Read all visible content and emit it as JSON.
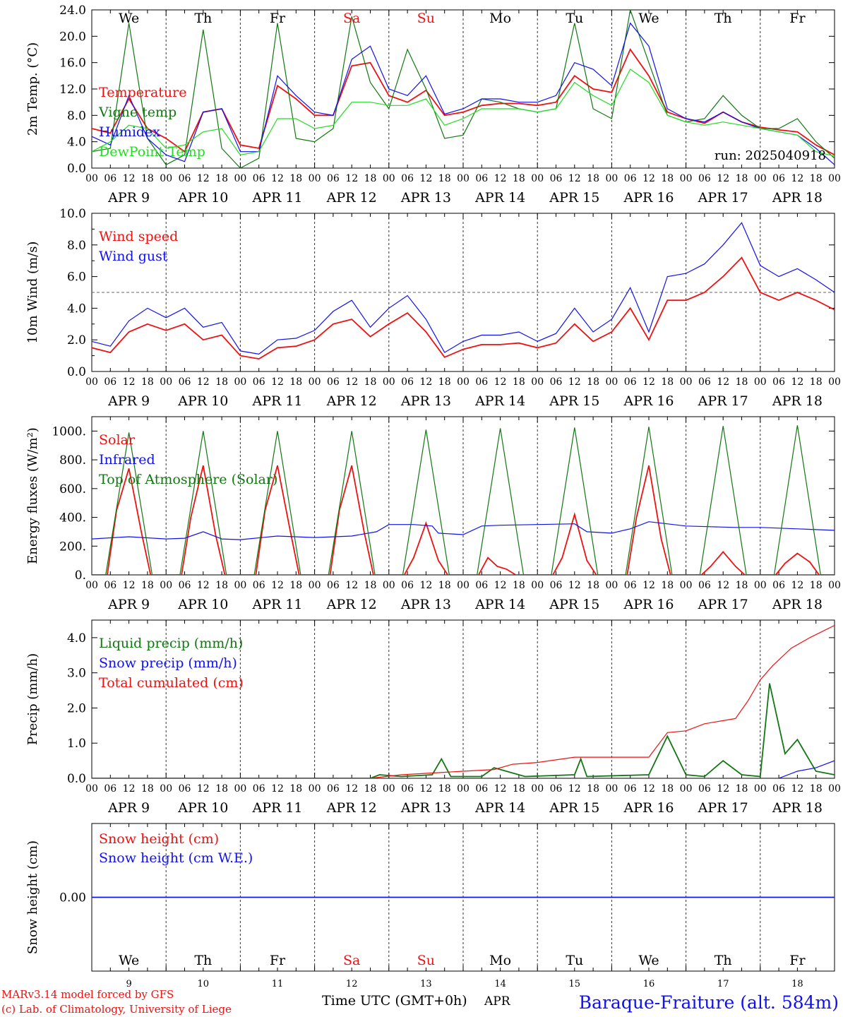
{
  "colors": {
    "red": "#ee1111",
    "blue": "#1111ee",
    "green": "#117711",
    "lightgreen": "#22dd22",
    "grey": "#555555"
  },
  "days": {
    "date_labels": [
      "APR  9",
      "APR 10",
      "APR 11",
      "APR 12",
      "APR 13",
      "APR 14",
      "APR 15",
      "APR 16",
      "APR 17",
      "APR 18"
    ],
    "weekday_labels": [
      "We",
      "Th",
      "Fr",
      "Sa",
      "Su",
      "Mo",
      "Tu",
      "We",
      "Th",
      "Fr"
    ],
    "weekend_flags": [
      false,
      false,
      false,
      true,
      true,
      false,
      false,
      false,
      false,
      false
    ],
    "day_numbers": [
      "9",
      "10",
      "11",
      "12",
      "13",
      "14",
      "15",
      "16",
      "17",
      "18"
    ],
    "hour_ticks": [
      "00",
      "06",
      "12",
      "18"
    ],
    "final_tick": "00"
  },
  "footer": {
    "model_line": "MARv3.14 model forced by GFS",
    "copyright_line": "(c) Lab. of Climatology, University of Liege",
    "time_axis_label": "Time UTC (GMT+0h)",
    "month_label": "APR",
    "station_title": "Baraque-Fraiture (alt. 584m)"
  },
  "chart_data": [
    {
      "type": "line",
      "ylabel": "2m Temp. (°C)",
      "yticks": [
        "0.0",
        "4.0",
        "8.0",
        "12.0",
        "16.0",
        "20.0",
        "24.0"
      ],
      "ylim": [
        0,
        24
      ],
      "xlim_hours": [
        0,
        240
      ],
      "annotation": "run: 2025040918",
      "series": [
        {
          "name": "Temperature",
          "color": "red",
          "x": [
            0,
            6,
            12,
            18,
            24,
            30,
            36,
            42,
            48,
            54,
            60,
            66,
            72,
            78,
            84,
            90,
            96,
            102,
            108,
            114,
            120,
            126,
            132,
            138,
            144,
            150,
            156,
            162,
            168,
            174,
            180,
            186,
            192,
            198,
            204,
            210,
            216,
            222,
            228,
            234,
            240
          ],
          "values": [
            6.0,
            5.3,
            10.5,
            6.0,
            4.5,
            2.5,
            8.5,
            9.0,
            3.5,
            3.0,
            12.5,
            10.5,
            8.0,
            8.0,
            15.5,
            16.0,
            11.0,
            10.0,
            11.8,
            8.0,
            8.5,
            9.5,
            9.8,
            9.8,
            9.5,
            10.0,
            14.0,
            12.0,
            11.5,
            18.0,
            14.0,
            8.5,
            7.5,
            6.8,
            8.5,
            7.0,
            6.2,
            5.8,
            5.5,
            3.5,
            2.0
          ]
        },
        {
          "name": "Vigne temp",
          "color": "green",
          "x": [
            0,
            6,
            12,
            18,
            24,
            30,
            36,
            42,
            48,
            54,
            60,
            66,
            72,
            78,
            84,
            90,
            96,
            102,
            108,
            114,
            120,
            126,
            132,
            138,
            144,
            150,
            156,
            162,
            168,
            174,
            180,
            186,
            192,
            198,
            204,
            210,
            216,
            222,
            228,
            234,
            240
          ],
          "values": [
            2.5,
            3.0,
            22.0,
            4.5,
            0.5,
            2.0,
            21.0,
            3.0,
            0.0,
            1.5,
            22.0,
            4.5,
            4.0,
            6.0,
            23.0,
            13.0,
            9.0,
            18.0,
            12.0,
            4.5,
            5.0,
            10.5,
            10.0,
            9.0,
            8.5,
            9.0,
            22.0,
            9.0,
            7.5,
            24.0,
            16.0,
            8.0,
            7.0,
            7.5,
            11.0,
            8.0,
            6.0,
            6.0,
            7.5,
            4.0,
            1.5
          ]
        },
        {
          "name": "Humidex",
          "color": "blue",
          "x": [
            0,
            6,
            12,
            18,
            24,
            30,
            36,
            42,
            48,
            54,
            60,
            66,
            72,
            78,
            84,
            90,
            96,
            102,
            108,
            114,
            120,
            126,
            132,
            138,
            144,
            150,
            156,
            162,
            168,
            174,
            180,
            186,
            192,
            198,
            204,
            210,
            216,
            222,
            228,
            234,
            240
          ],
          "values": [
            4.8,
            3.5,
            11.0,
            4.5,
            2.0,
            1.0,
            8.5,
            9.0,
            2.5,
            2.5,
            14.0,
            11.0,
            8.5,
            8.0,
            16.5,
            18.5,
            12.0,
            11.0,
            14.0,
            8.2,
            9.0,
            10.5,
            10.5,
            10.0,
            10.0,
            11.0,
            16.0,
            15.0,
            12.5,
            22.0,
            18.5,
            9.0,
            7.5,
            7.0,
            8.5,
            7.0,
            6.0,
            5.5,
            5.0,
            3.0,
            0.5
          ]
        },
        {
          "name": "DewPoint Temp",
          "color": "lightgreen",
          "x": [
            0,
            6,
            12,
            18,
            24,
            30,
            36,
            42,
            48,
            54,
            60,
            66,
            72,
            78,
            84,
            90,
            96,
            102,
            108,
            114,
            120,
            126,
            132,
            138,
            144,
            150,
            156,
            162,
            168,
            174,
            180,
            186,
            192,
            198,
            204,
            210,
            216,
            222,
            228,
            234,
            240
          ],
          "values": [
            2.5,
            4.0,
            6.5,
            6.0,
            3.0,
            3.5,
            5.5,
            6.0,
            2.0,
            2.5,
            7.5,
            7.5,
            6.0,
            6.5,
            10.0,
            10.0,
            9.5,
            9.5,
            10.5,
            6.5,
            7.5,
            9.0,
            9.0,
            9.0,
            8.5,
            9.0,
            13.0,
            11.0,
            9.5,
            15.0,
            13.0,
            8.0,
            7.0,
            6.5,
            7.0,
            6.5,
            6.0,
            5.5,
            5.0,
            2.5,
            1.8
          ]
        }
      ]
    },
    {
      "type": "line",
      "ylabel": "10m Wind (m/s)",
      "yticks": [
        "0.0",
        "2.0",
        "4.0",
        "6.0",
        "8.0",
        "10.0"
      ],
      "ylim": [
        0,
        10
      ],
      "xlim_hours": [
        0,
        240
      ],
      "reference_line": 5.0,
      "series": [
        {
          "name": "Wind speed",
          "color": "red",
          "x": [
            0,
            6,
            12,
            18,
            24,
            30,
            36,
            42,
            48,
            54,
            60,
            66,
            72,
            78,
            84,
            90,
            96,
            102,
            108,
            114,
            120,
            126,
            132,
            138,
            144,
            150,
            156,
            162,
            168,
            174,
            180,
            186,
            192,
            198,
            204,
            210,
            216,
            222,
            228,
            234,
            240
          ],
          "values": [
            1.5,
            1.2,
            2.5,
            3.0,
            2.6,
            3.0,
            2.0,
            2.3,
            1.0,
            0.8,
            1.5,
            1.6,
            2.0,
            3.0,
            3.3,
            2.2,
            3.0,
            3.7,
            2.5,
            0.9,
            1.4,
            1.7,
            1.7,
            1.8,
            1.5,
            1.8,
            3.0,
            1.9,
            2.5,
            4.0,
            2.0,
            4.5,
            4.5,
            5.0,
            6.0,
            7.2,
            5.0,
            4.5,
            5.0,
            4.5,
            3.9
          ]
        },
        {
          "name": "Wind gust",
          "color": "blue",
          "x": [
            0,
            6,
            12,
            18,
            24,
            30,
            36,
            42,
            48,
            54,
            60,
            66,
            72,
            78,
            84,
            90,
            96,
            102,
            108,
            114,
            120,
            126,
            132,
            138,
            144,
            150,
            156,
            162,
            168,
            174,
            180,
            186,
            192,
            198,
            204,
            210,
            216,
            222,
            228,
            234,
            240
          ],
          "values": [
            1.9,
            1.6,
            3.2,
            4.0,
            3.4,
            4.0,
            2.8,
            3.1,
            1.3,
            1.1,
            2.0,
            2.1,
            2.6,
            3.8,
            4.5,
            2.8,
            4.0,
            4.8,
            3.3,
            1.2,
            1.9,
            2.3,
            2.3,
            2.5,
            1.9,
            2.4,
            4.0,
            2.5,
            3.3,
            5.3,
            2.5,
            6.0,
            6.2,
            6.8,
            8.0,
            9.4,
            6.7,
            6.0,
            6.5,
            5.8,
            5.0
          ]
        }
      ]
    },
    {
      "type": "line",
      "ylabel": "Energy fluxes (W/m²)",
      "yticks": [
        "0.",
        "200.",
        "400.",
        "600.",
        "800.",
        "1000."
      ],
      "ylim": [
        0,
        1100
      ],
      "xlim_hours": [
        0,
        240
      ],
      "series": [
        {
          "name": "Solar",
          "color": "red",
          "x": [
            0,
            5,
            8,
            12,
            16,
            19,
            24,
            29,
            32,
            36,
            40,
            43,
            48,
            53,
            56,
            60,
            64,
            67,
            72,
            77,
            80,
            84,
            88,
            91,
            96,
            101,
            104,
            108,
            112,
            115,
            120,
            125,
            128,
            131,
            134,
            137,
            144,
            149,
            152,
            156,
            160,
            163,
            168,
            173,
            176,
            180,
            184,
            187,
            192,
            197,
            200,
            204,
            208,
            211,
            216,
            221,
            224,
            228,
            232,
            235,
            240
          ],
          "values": [
            0,
            0,
            450,
            740,
            300,
            0,
            0,
            0,
            400,
            760,
            280,
            0,
            0,
            0,
            450,
            760,
            320,
            0,
            0,
            0,
            450,
            760,
            300,
            0,
            0,
            0,
            120,
            360,
            100,
            0,
            0,
            0,
            120,
            60,
            40,
            0,
            0,
            0,
            120,
            420,
            100,
            0,
            0,
            0,
            400,
            760,
            250,
            0,
            0,
            0,
            60,
            160,
            60,
            0,
            0,
            0,
            80,
            150,
            90,
            0,
            0
          ]
        },
        {
          "name": "Infrared",
          "color": "blue",
          "x": [
            0,
            12,
            24,
            30,
            36,
            42,
            48,
            60,
            72,
            84,
            92,
            96,
            104,
            110,
            112,
            120,
            126,
            132,
            144,
            156,
            160,
            168,
            174,
            180,
            192,
            200,
            208,
            216,
            228,
            240
          ],
          "values": [
            250,
            265,
            250,
            255,
            300,
            250,
            245,
            270,
            260,
            270,
            300,
            350,
            350,
            340,
            290,
            280,
            340,
            345,
            350,
            355,
            300,
            290,
            320,
            370,
            340,
            335,
            330,
            330,
            320,
            310
          ]
        },
        {
          "name": "Top of Atmosphere (Solar)",
          "color": "green",
          "x": [
            0,
            4.5,
            12,
            19.5,
            24,
            28.5,
            36,
            43.5,
            48,
            52.5,
            60,
            67.5,
            72,
            76.5,
            84,
            91.5,
            96,
            100.5,
            108,
            115.5,
            120,
            124.5,
            132,
            139.5,
            144,
            148.5,
            156,
            163.5,
            168,
            172.5,
            180,
            187.5,
            192,
            196.5,
            204,
            211.5,
            216,
            220.5,
            228,
            235.5,
            240
          ],
          "values": [
            0,
            0,
            990,
            0,
            0,
            0,
            1000,
            0,
            0,
            0,
            1000,
            0,
            0,
            0,
            1000,
            0,
            0,
            0,
            1010,
            0,
            0,
            0,
            1020,
            0,
            0,
            0,
            1025,
            0,
            0,
            0,
            1030,
            0,
            0,
            0,
            1035,
            0,
            0,
            0,
            1040,
            0,
            0
          ]
        }
      ]
    },
    {
      "type": "line",
      "ylabel": "Precip (mm/h)",
      "yticks": [
        "0.0",
        "1.0",
        "2.0",
        "3.0",
        "4.0"
      ],
      "ylim": [
        0,
        4.5
      ],
      "xlim_hours": [
        0,
        240
      ],
      "series": [
        {
          "name": "Liquid precip (mm/h)",
          "color": "green",
          "x": [
            0,
            90,
            93,
            100,
            110,
            113,
            116,
            126,
            130,
            140,
            156,
            158,
            160,
            180,
            186,
            192,
            198,
            204,
            210,
            216,
            219,
            224,
            228,
            234,
            240
          ],
          "values": [
            0,
            0,
            0.1,
            0.05,
            0.1,
            0.55,
            0.05,
            0.05,
            0.3,
            0.05,
            0.1,
            0.55,
            0.05,
            0.1,
            1.2,
            0.1,
            0.05,
            0.5,
            0.1,
            0.05,
            2.7,
            0.7,
            1.1,
            0.2,
            0.1
          ]
        },
        {
          "name": "Snow precip (mm/h)",
          "color": "blue",
          "x": [
            0,
            222,
            228,
            234,
            240
          ],
          "values": [
            0,
            0,
            0.2,
            0.3,
            0.5
          ]
        },
        {
          "name": "Total cumulated (cm)",
          "color": "red",
          "x": [
            0,
            90,
            100,
            110,
            120,
            130,
            136,
            144,
            156,
            168,
            180,
            186,
            192,
            198,
            208,
            212,
            216,
            220,
            226,
            232,
            240
          ],
          "values": [
            0,
            0,
            0.1,
            0.15,
            0.2,
            0.25,
            0.4,
            0.45,
            0.6,
            0.6,
            0.6,
            1.3,
            1.35,
            1.55,
            1.7,
            2.2,
            2.8,
            3.2,
            3.7,
            4.0,
            4.35
          ]
        }
      ]
    },
    {
      "type": "line",
      "ylabel": "Snow height (cm)",
      "yticks": [
        "0.00"
      ],
      "ylim": [
        -1,
        1
      ],
      "xlim_hours": [
        0,
        240
      ],
      "series": [
        {
          "name": "Snow height (cm)",
          "color": "red",
          "x": [
            0,
            240
          ],
          "values": [
            0,
            0
          ]
        },
        {
          "name": "Snow height (cm W.E.)",
          "color": "blue",
          "x": [
            0,
            240
          ],
          "values": [
            0,
            0
          ]
        }
      ]
    }
  ]
}
